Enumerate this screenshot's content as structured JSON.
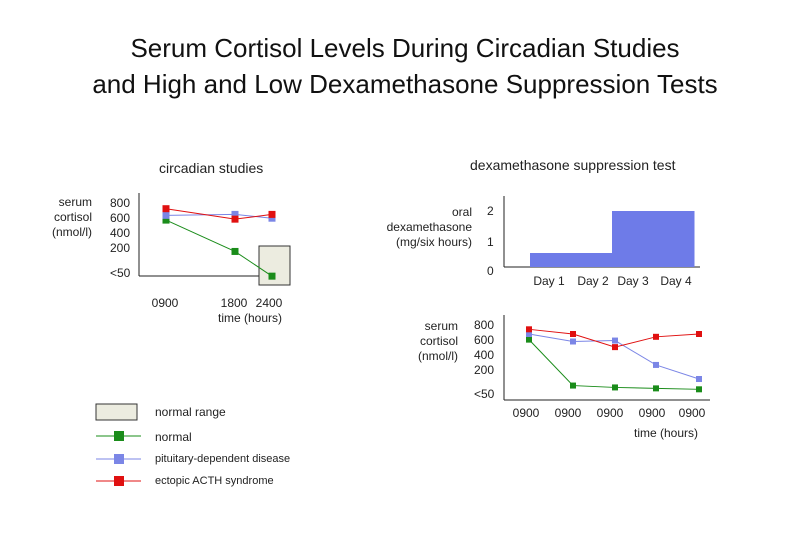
{
  "title": {
    "line1": "Serum Cortisol Levels During Circadian Studies",
    "line2": "and High and Low Dexamethasone Suppression Tests"
  },
  "chart_data": [
    {
      "type": "line",
      "subtitle": "circadian studies",
      "ylabel": "serum cortisol (nmol/l)",
      "ylabel_lines": [
        "serum",
        "cortisol",
        "(nmol/l)"
      ],
      "y_ticks": [
        "800",
        "600",
        "400",
        "200"
      ],
      "y_bottom_label": "<50",
      "x_tick_labels": [
        "0900",
        "1800",
        "2400"
      ],
      "xlabel": "time (hours)",
      "x": [
        "0900",
        "1800",
        "2400"
      ],
      "series": [
        {
          "name": "normal",
          "color": "#1a8c1a",
          "values": [
            620,
            290,
            30
          ]
        },
        {
          "name": "pituitary-dependent disease",
          "color": "#7b86e6",
          "values": [
            670,
            680,
            640
          ]
        },
        {
          "name": "ectopic ACTH syndrome",
          "color": "#e01010",
          "values": [
            740,
            630,
            680
          ]
        }
      ],
      "normal_range": {
        "x": "2400",
        "y_min": 0,
        "y_max": 150
      },
      "legend": [
        {
          "label": "normal range",
          "type": "box"
        },
        {
          "label": "normal",
          "color": "#1a8c1a"
        },
        {
          "label": "pituitary-dependent disease",
          "color": "#7b86e6"
        },
        {
          "label": "ectopic ACTH syndrome",
          "color": "#e01010"
        }
      ]
    },
    {
      "type": "bar",
      "subtitle": "dexamethasone suppression test",
      "ylabel": "oral dexamethasone (mg/six hours)",
      "ylabel_lines": [
        "oral",
        "dexamethasone",
        "(mg/six hours)"
      ],
      "y_ticks": [
        "2",
        "1",
        "0"
      ],
      "categories": [
        "Day 1",
        "Day 2",
        "Day 3",
        "Day 4"
      ],
      "values": [
        0.5,
        0.5,
        2,
        2
      ],
      "color": "#6e7be8"
    },
    {
      "type": "line",
      "ylabel": "serum cortisol (nmol/l)",
      "ylabel_lines": [
        "serum",
        "cortisol",
        "(nmol/l)"
      ],
      "y_ticks": [
        "800",
        "600",
        "400",
        "200"
      ],
      "y_bottom_label": "<50",
      "x_tick_labels": [
        "0900",
        "0900",
        "0900",
        "0900",
        "0900"
      ],
      "xlabel": "time (hours)",
      "series": [
        {
          "name": "normal",
          "color": "#1a8c1a",
          "values": [
            580,
            90,
            70,
            60,
            50
          ]
        },
        {
          "name": "pituitary-dependent disease",
          "color": "#7b86e6",
          "values": [
            640,
            560,
            570,
            310,
            160
          ]
        },
        {
          "name": "ectopic ACTH syndrome",
          "color": "#e01010",
          "values": [
            690,
            640,
            500,
            610,
            640
          ]
        }
      ]
    }
  ]
}
